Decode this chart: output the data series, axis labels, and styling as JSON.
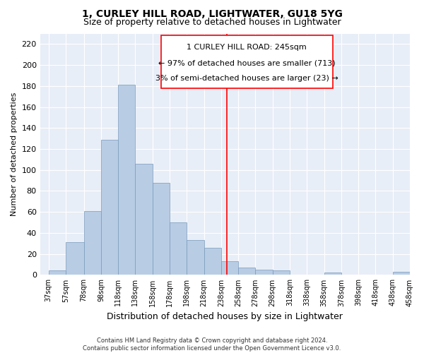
{
  "title": "1, CURLEY HILL ROAD, LIGHTWATER, GU18 5YG",
  "subtitle": "Size of property relative to detached houses in Lightwater",
  "xlabel": "Distribution of detached houses by size in Lightwater",
  "ylabel": "Number of detached properties",
  "background_color": "#e8eef7",
  "bar_color": "#b8cce4",
  "bar_edge_color": "#7799bb",
  "ylim": [
    0,
    230
  ],
  "xlim": [
    27,
    458
  ],
  "marker_x": 245,
  "annotation_line1": "1 CURLEY HILL ROAD: 245sqm",
  "annotation_line2": "← 97% of detached houses are smaller (713)",
  "annotation_line3": "3% of semi-detached houses are larger (23) →",
  "footer_line1": "Contains HM Land Registry data © Crown copyright and database right 2024.",
  "footer_line2": "Contains public sector information licensed under the Open Government Licence v3.0.",
  "bin_edges": [
    37,
    57,
    78,
    98,
    118,
    138,
    158,
    178,
    198,
    218,
    238,
    258,
    278,
    298,
    318,
    338,
    358,
    378,
    398,
    418,
    438,
    458
  ],
  "bar_heights": [
    4,
    31,
    61,
    129,
    181,
    106,
    88,
    50,
    33,
    26,
    13,
    7,
    5,
    4,
    0,
    0,
    2,
    0,
    0,
    0,
    3
  ],
  "yticks": [
    0,
    20,
    40,
    60,
    80,
    100,
    120,
    140,
    160,
    180,
    200,
    220
  ],
  "title_fontsize": 10,
  "subtitle_fontsize": 9,
  "tick_fontsize": 7,
  "annotation_fontsize": 8,
  "ylabel_fontsize": 8,
  "xlabel_fontsize": 9,
  "footer_fontsize": 6
}
